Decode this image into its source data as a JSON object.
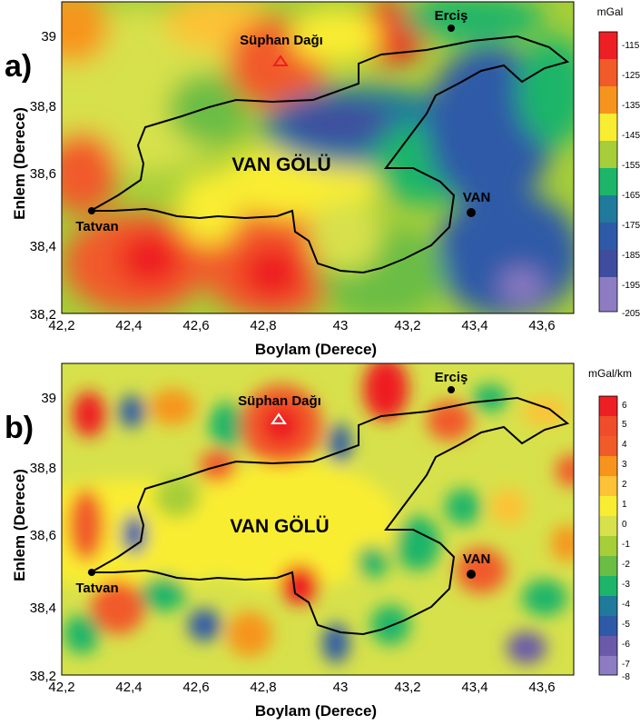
{
  "maps": [
    {
      "id": "a",
      "panel_label": "a)",
      "x_axis_title": "Boylam (Derece)",
      "y_axis_title": "Enlem (Derece)",
      "x_ticks": [
        "42,2",
        "42,4",
        "42,6",
        "42,8",
        "43",
        "43,2",
        "43,4",
        "43,6"
      ],
      "y_ticks": [
        "38,2",
        "38,4",
        "38,6",
        "38,8",
        "39"
      ],
      "colorbar_unit": "mGal",
      "colorbar_ticks": [
        "-115",
        "-125",
        "-135",
        "-145",
        "-155",
        "-165",
        "-175",
        "-185",
        "-195",
        "-205"
      ],
      "places": {
        "suphan": "Süphan Dağı",
        "ercis": "Erciş",
        "lake": "VAN GÖLÜ",
        "van": "VAN",
        "tatvan": "Tatvan"
      }
    },
    {
      "id": "b",
      "panel_label": "b)",
      "x_axis_title": "Boylam (Derece)",
      "y_axis_title": "Enlem (Derece)",
      "x_ticks": [
        "42,2",
        "42,4",
        "42,6",
        "42,8",
        "43",
        "43,2",
        "43,4",
        "43,6"
      ],
      "y_ticks": [
        "38,2",
        "38,4",
        "38,6",
        "38,8",
        "39"
      ],
      "colorbar_unit": "mGal/km",
      "colorbar_ticks": [
        "6",
        "5",
        "4",
        "3",
        "2",
        "1",
        "0",
        "-1",
        "-2",
        "-3",
        "-4",
        "-5",
        "-6",
        "-7",
        "-8"
      ],
      "places": {
        "suphan": "Süphan Dağı",
        "ercis": "Erciş",
        "lake": "VAN GÖLÜ",
        "van": "VAN",
        "tatvan": "Tatvan"
      }
    }
  ],
  "colors": {
    "ramp": [
      "#ee1f24",
      "#f15a29",
      "#f7941d",
      "#fdc236",
      "#f9ed32",
      "#d7e14b",
      "#a6ce39",
      "#6abd45",
      "#1db569",
      "#1f7a9c",
      "#2e5aa7",
      "#3f4d9f",
      "#6a5aa8",
      "#8e7cc3"
    ]
  }
}
